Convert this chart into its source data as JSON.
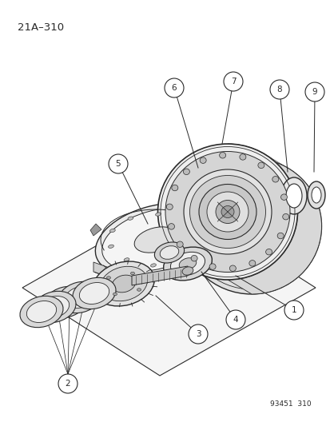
{
  "page_label": "21A–310",
  "doc_label": "93451  310",
  "background_color": "#ffffff",
  "line_color": "#2a2a2a",
  "figure_size": [
    4.14,
    5.33
  ],
  "dpi": 100
}
